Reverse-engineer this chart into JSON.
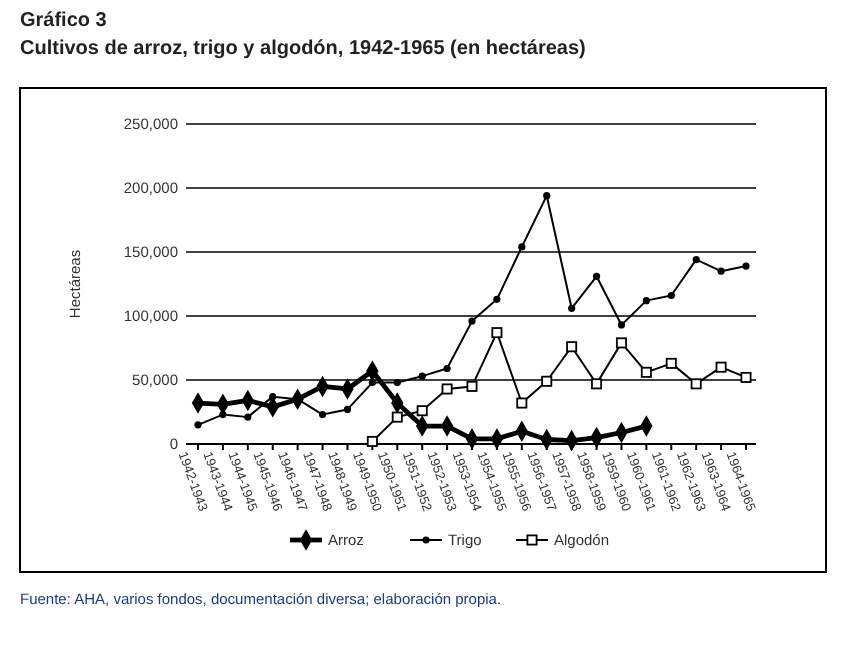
{
  "chart_data": {
    "type": "line",
    "title": "Gráfico 3",
    "subtitle": "Cultivos de arroz, trigo y algodón, 1942-1965 (en hectáreas)",
    "ylabel": "Hectáreas",
    "categories": [
      "1942-1943",
      "1943-1944",
      "1944-1945",
      "1945-1946",
      "1946-1947",
      "1947-1948",
      "1948-1949",
      "1949-1950",
      "1950-1951",
      "1951-1952",
      "1952-1953",
      "1953-1954",
      "1954-1955",
      "1955-1956",
      "1956-1957",
      "1957-1958",
      "1958-1959",
      "1959-1960",
      "1960-1961",
      "1961-1962",
      "1962-1963",
      "1963-1964",
      "1964-1965"
    ],
    "series": [
      {
        "name": "Arroz",
        "color": "#000000",
        "marker": "diamond",
        "values": [
          32000,
          31000,
          34000,
          29000,
          35000,
          45000,
          43000,
          57000,
          32000,
          14000,
          14000,
          4000,
          4000,
          10000,
          3500,
          2700,
          5000,
          9000,
          14000,
          null,
          null,
          null,
          null
        ]
      },
      {
        "name": "Trigo",
        "color": "#000000",
        "marker": "circle",
        "values": [
          15000,
          23000,
          21000,
          37000,
          35000,
          23000,
          27000,
          48000,
          48000,
          53000,
          59000,
          96000,
          113000,
          154000,
          194000,
          106000,
          131000,
          93000,
          112000,
          116000,
          144000,
          135000,
          139000
        ]
      },
      {
        "name": "Algodón",
        "color": "#000000",
        "marker": "square",
        "values": [
          null,
          null,
          null,
          null,
          null,
          null,
          null,
          2000,
          21000,
          26000,
          43000,
          45000,
          87000,
          32000,
          49000,
          76000,
          47000,
          79000,
          56000,
          63000,
          47000,
          60000,
          52000
        ]
      }
    ],
    "ylim": [
      0,
      250000
    ],
    "yticks": [
      0,
      {
        "value": 50000,
        "label": "50,000"
      },
      {
        "value": 100000,
        "label": "100,000"
      },
      {
        "value": 150000,
        "label": "150,000"
      },
      {
        "value": 200000,
        "label": "200,000"
      },
      {
        "value": 250000,
        "label": "250,000"
      }
    ],
    "grid": "y",
    "legend": "bottom",
    "annotations": [
      "Fuente: AHA, varios fondos, documentación diversa; elaboración propia."
    ]
  }
}
